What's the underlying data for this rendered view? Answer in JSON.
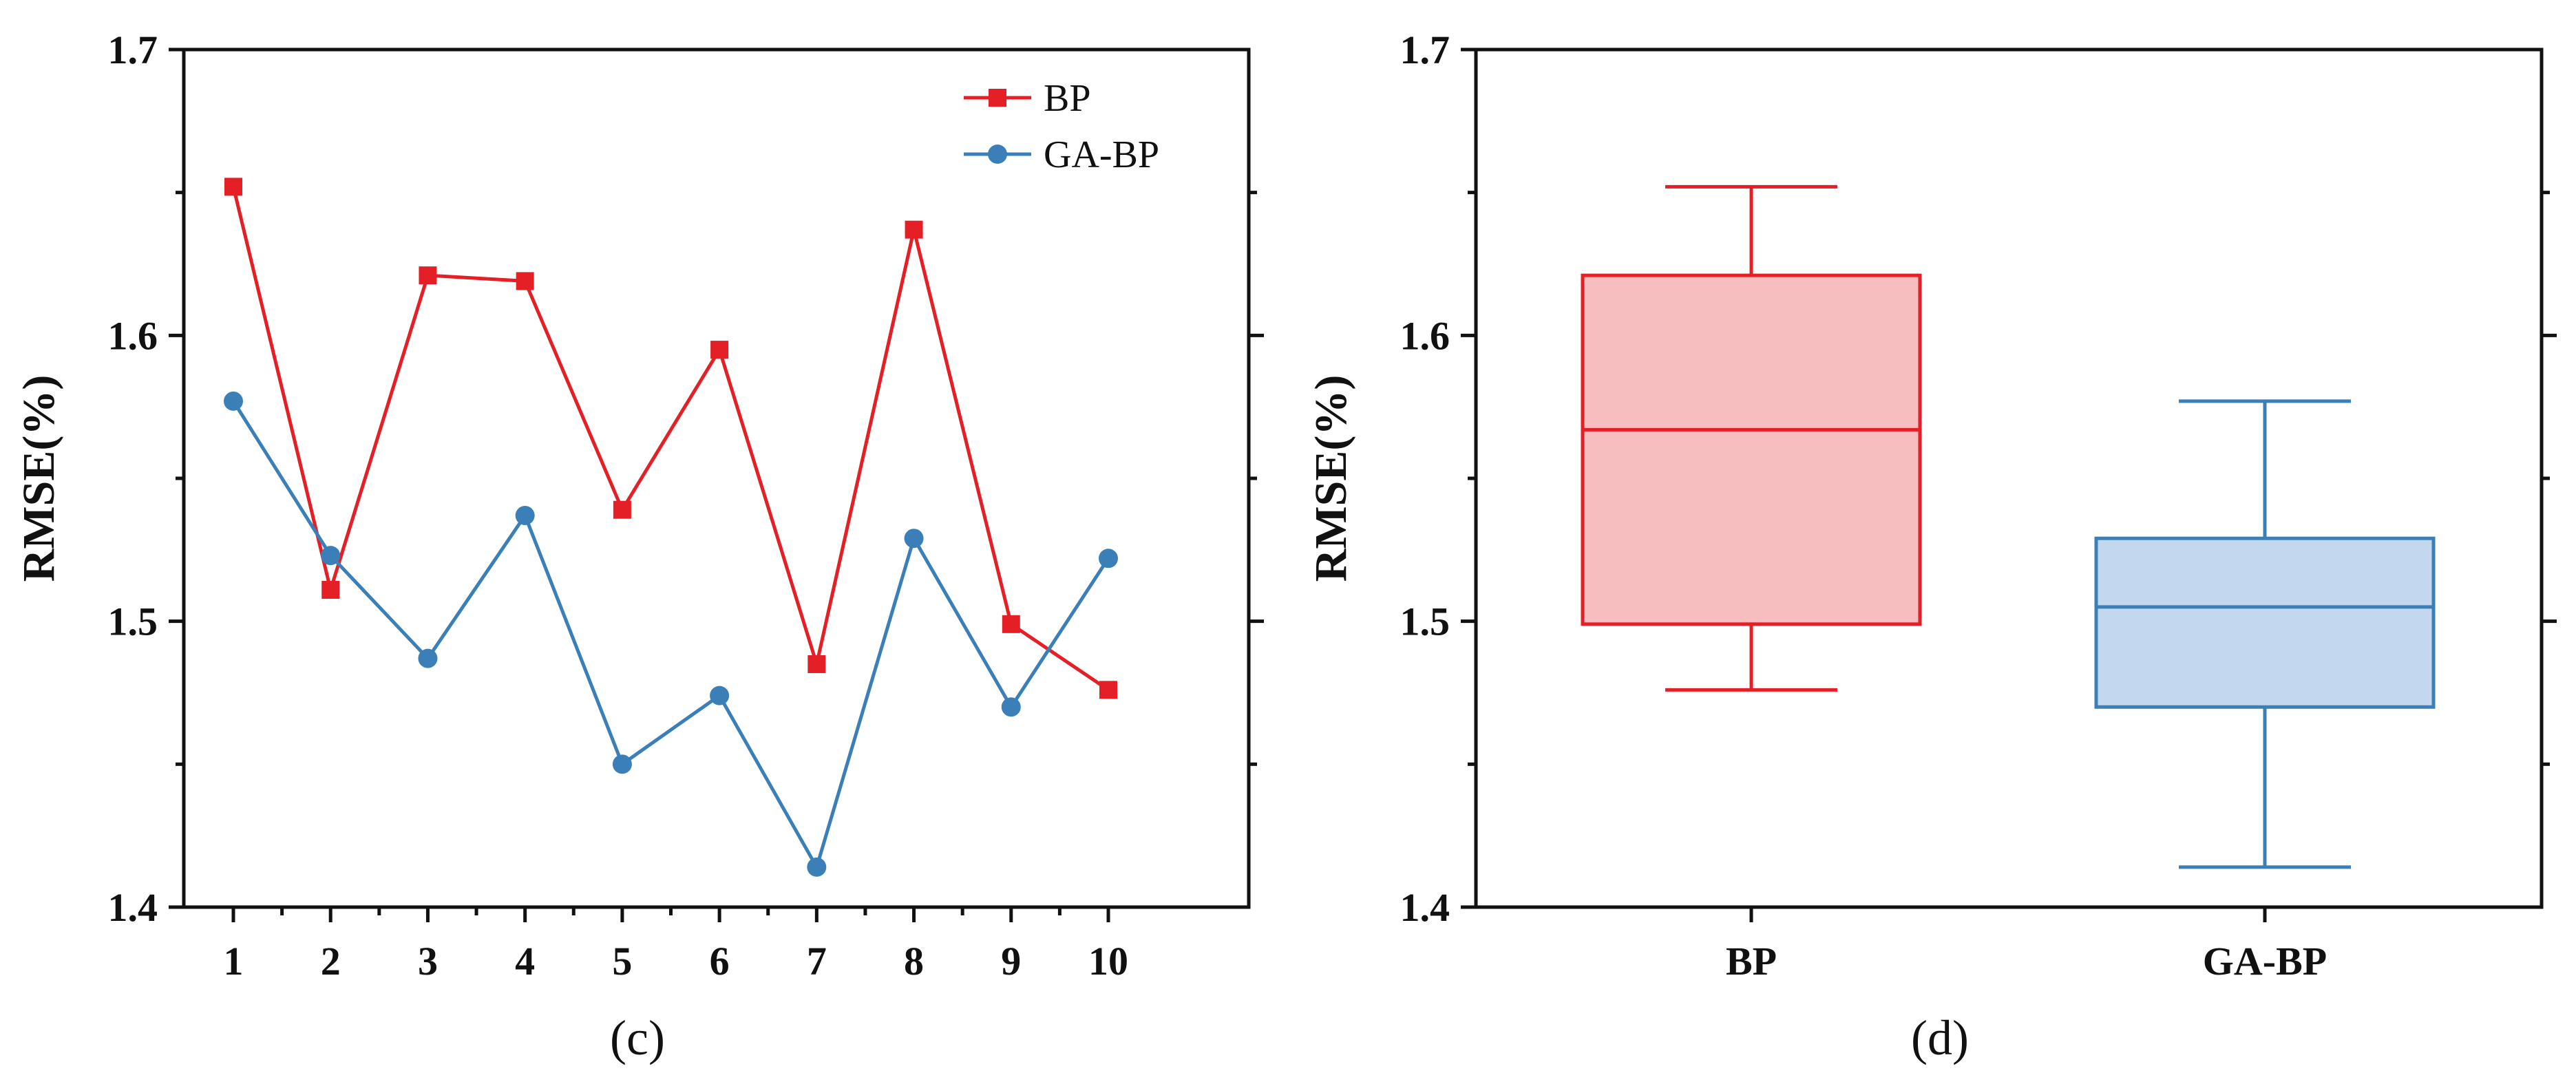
{
  "colors": {
    "bp": "#e41f26",
    "ga_bp": "#3b7fb8",
    "bp_fill": "#f6bebe",
    "ga_bp_fill": "#c3d8ee"
  },
  "chart_data": [
    {
      "type": "line",
      "panel_label": "(c)",
      "xlabel": "",
      "ylabel": "RMSE(%)",
      "x": [
        1,
        2,
        3,
        4,
        5,
        6,
        7,
        8,
        9,
        10
      ],
      "xticks": [
        "1",
        "2",
        "3",
        "4",
        "5",
        "6",
        "7",
        "8",
        "9",
        "10"
      ],
      "ylim": [
        1.4,
        1.7
      ],
      "yticks": [
        "1.4",
        "1.5",
        "1.6",
        "1.7"
      ],
      "legend_position": "top-right",
      "series": [
        {
          "name": "BP",
          "marker": "square",
          "values": [
            1.652,
            1.511,
            1.621,
            1.619,
            1.539,
            1.595,
            1.485,
            1.637,
            1.499,
            1.476
          ]
        },
        {
          "name": "GA-BP",
          "marker": "circle",
          "values": [
            1.577,
            1.523,
            1.487,
            1.537,
            1.45,
            1.474,
            1.414,
            1.529,
            1.47,
            1.522
          ]
        }
      ]
    },
    {
      "type": "box",
      "panel_label": "(d)",
      "xlabel": "",
      "ylabel": "RMSE(%)",
      "categories": [
        "BP",
        "GA-BP"
      ],
      "ylim": [
        1.4,
        1.7
      ],
      "yticks": [
        "1.4",
        "1.5",
        "1.6",
        "1.7"
      ],
      "boxes": [
        {
          "min": 1.476,
          "q1": 1.499,
          "median": 1.567,
          "q3": 1.621,
          "max": 1.652
        },
        {
          "min": 1.414,
          "q1": 1.47,
          "median": 1.505,
          "q3": 1.529,
          "max": 1.577
        }
      ]
    }
  ]
}
